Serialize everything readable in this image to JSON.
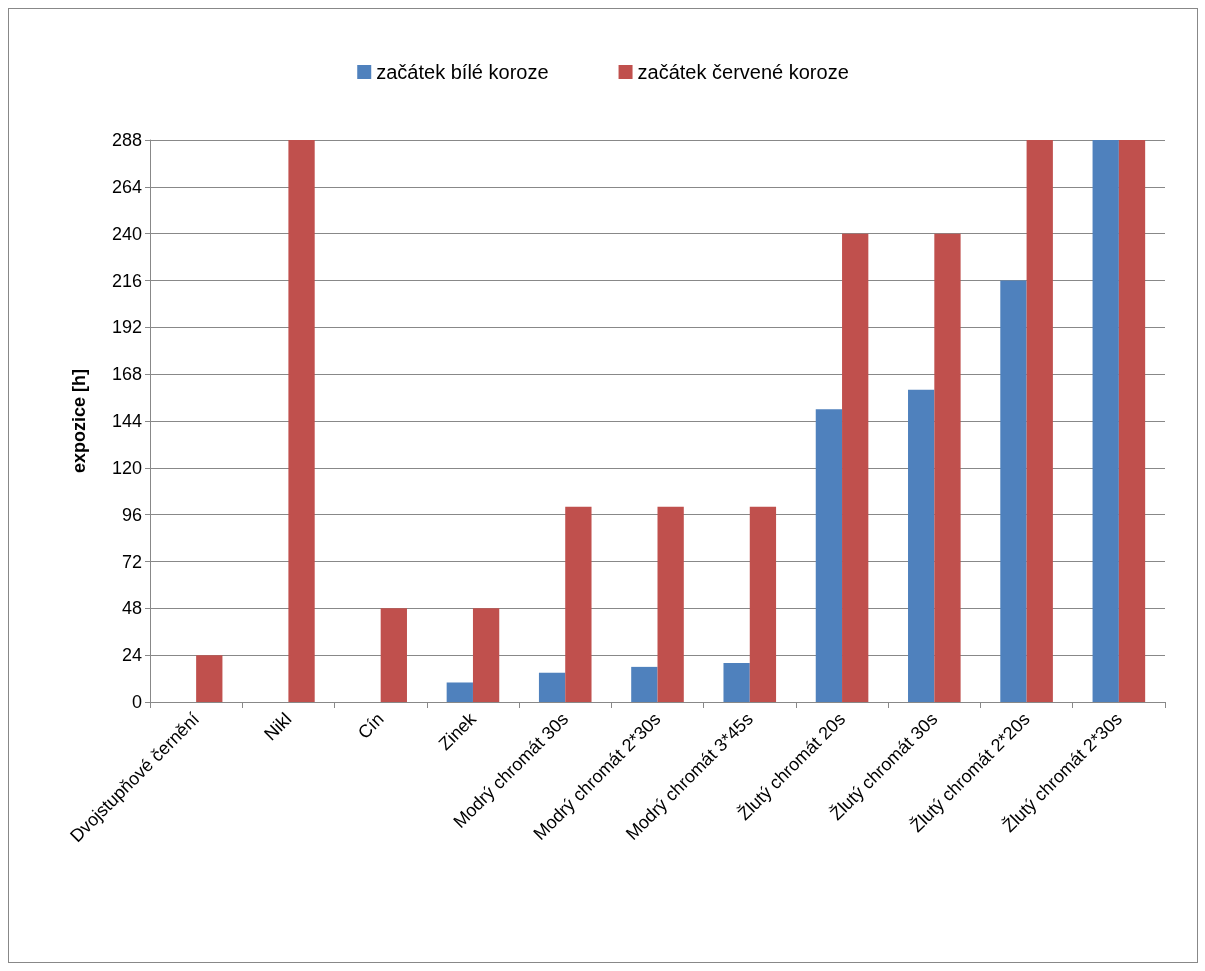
{
  "chart_data": {
    "type": "bar",
    "ylabel": "expozice [h]",
    "categories": [
      "Dvojstupňové černění",
      "Nikl",
      "Cín",
      "Zinek",
      "Modrý chromát 30s",
      "Modrý chromát 2*30s",
      "Modrý chromát 3*45s",
      "Žlutý chromát 20s",
      "Žlutý chromát 30s",
      "Žlutý chromát 2*20s",
      "Žlutý chromát 2*30s"
    ],
    "series": [
      {
        "name": "začátek bílé koroze",
        "color": "#4f81bd",
        "values": [
          0,
          0,
          0,
          10,
          15,
          18,
          20,
          150,
          160,
          216,
          288
        ]
      },
      {
        "name": "začátek červené koroze",
        "color": "#c0504d",
        "values": [
          24,
          288,
          48,
          48,
          100,
          100,
          100,
          240,
          240,
          288,
          288
        ]
      }
    ],
    "ylim": [
      0,
      288
    ],
    "yticks": [
      0,
      24,
      48,
      72,
      96,
      120,
      144,
      168,
      192,
      216,
      240,
      264,
      288
    ],
    "grid": "y",
    "legend": "top"
  }
}
